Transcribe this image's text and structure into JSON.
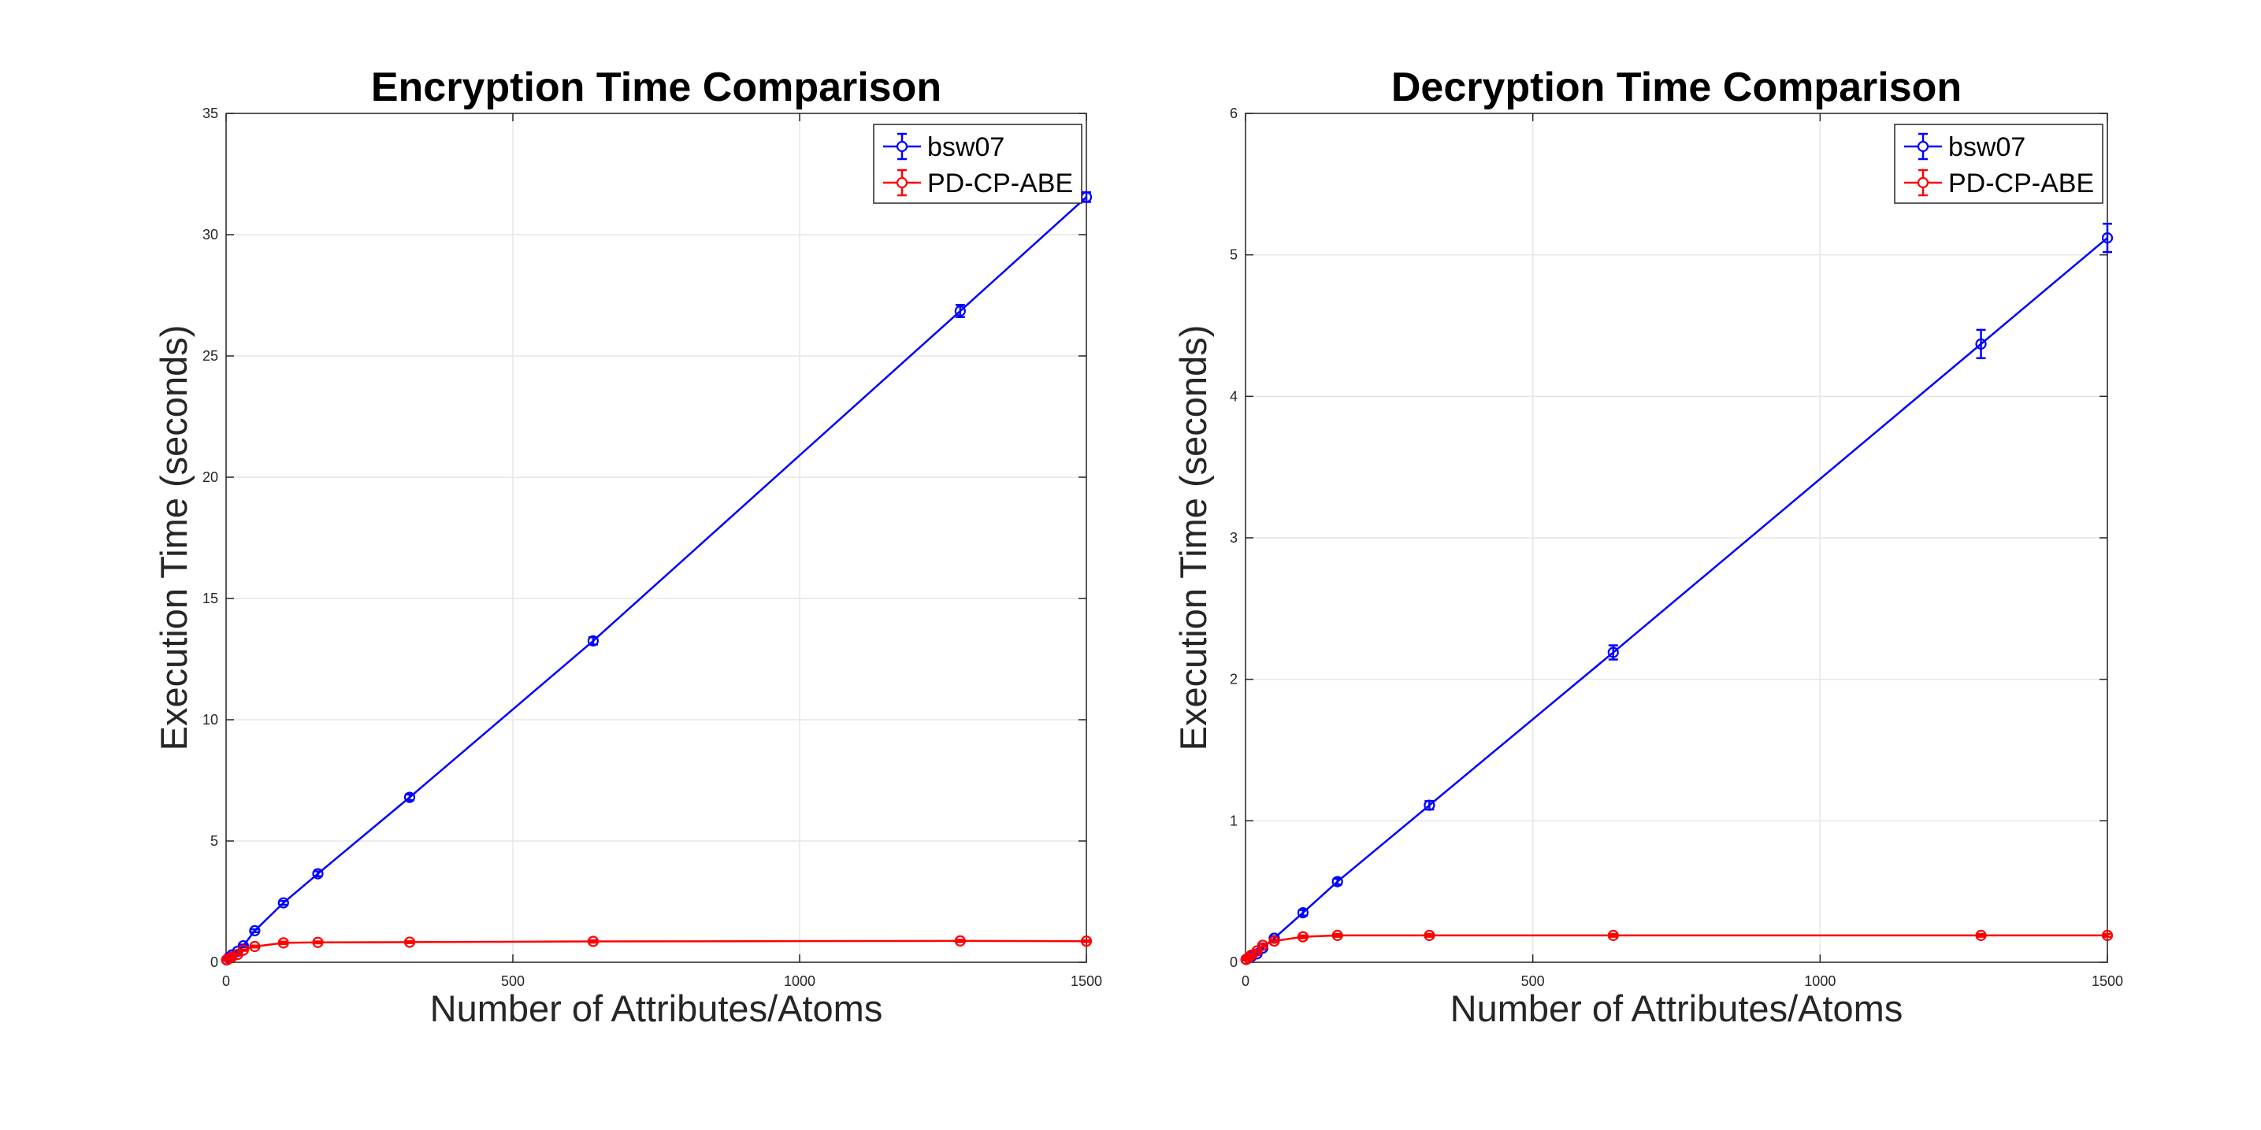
{
  "chart_data": [
    {
      "type": "line",
      "title": "Encryption Time Comparison",
      "xlabel": "Number of Attributes/Atoms",
      "ylabel": "Execution Time (seconds)",
      "xlim": [
        0,
        1500
      ],
      "ylim": [
        0,
        35
      ],
      "xticks": [
        0,
        500,
        1000,
        1500
      ],
      "yticks": [
        0,
        5,
        10,
        15,
        20,
        25,
        30,
        35
      ],
      "grid": true,
      "legend": "top-right",
      "series": [
        {
          "name": "bsw07",
          "color": "#0000ff",
          "x": [
            1,
            5,
            10,
            20,
            30,
            50,
            100,
            160,
            320,
            640,
            1280,
            1500
          ],
          "y": [
            0.1,
            0.2,
            0.3,
            0.45,
            0.68,
            1.3,
            2.45,
            3.65,
            6.8,
            13.25,
            26.85,
            31.55
          ],
          "err": [
            0.03,
            0.03,
            0.03,
            0.04,
            0.05,
            0.06,
            0.08,
            0.1,
            0.12,
            0.15,
            0.25,
            0.2
          ]
        },
        {
          "name": "PD-CP-ABE",
          "color": "#ff0000",
          "x": [
            1,
            5,
            10,
            20,
            30,
            50,
            100,
            160,
            320,
            640,
            1280,
            1500
          ],
          "y": [
            0.1,
            0.15,
            0.22,
            0.32,
            0.5,
            0.65,
            0.8,
            0.82,
            0.83,
            0.86,
            0.88,
            0.87
          ],
          "err": [
            0.02,
            0.02,
            0.02,
            0.03,
            0.03,
            0.04,
            0.05,
            0.04,
            0.04,
            0.05,
            0.05,
            0.04
          ]
        }
      ]
    },
    {
      "type": "line",
      "title": "Decryption Time Comparison",
      "xlabel": "Number of Attributes/Atoms",
      "ylabel": "Execution Time (seconds)",
      "xlim": [
        0,
        1500
      ],
      "ylim": [
        0,
        6
      ],
      "xticks": [
        0,
        500,
        1000,
        1500
      ],
      "yticks": [
        0,
        1,
        2,
        3,
        4,
        5,
        6
      ],
      "grid": true,
      "legend": "top-right",
      "series": [
        {
          "name": "bsw07",
          "color": "#0000ff",
          "x": [
            1,
            5,
            10,
            20,
            30,
            50,
            100,
            160,
            320,
            640,
            1280,
            1500
          ],
          "y": [
            0.02,
            0.03,
            0.04,
            0.06,
            0.1,
            0.17,
            0.35,
            0.57,
            1.11,
            2.19,
            4.37,
            5.12
          ],
          "err": [
            0.005,
            0.005,
            0.006,
            0.008,
            0.01,
            0.015,
            0.02,
            0.02,
            0.03,
            0.05,
            0.1,
            0.1
          ]
        },
        {
          "name": "PD-CP-ABE",
          "color": "#ff0000",
          "x": [
            1,
            5,
            10,
            20,
            30,
            50,
            100,
            160,
            320,
            640,
            1280,
            1500
          ],
          "y": [
            0.02,
            0.03,
            0.05,
            0.08,
            0.12,
            0.15,
            0.18,
            0.19,
            0.19,
            0.19,
            0.19,
            0.19
          ],
          "err": [
            0.005,
            0.005,
            0.006,
            0.008,
            0.01,
            0.01,
            0.01,
            0.01,
            0.01,
            0.01,
            0.01,
            0.01
          ]
        }
      ]
    }
  ]
}
